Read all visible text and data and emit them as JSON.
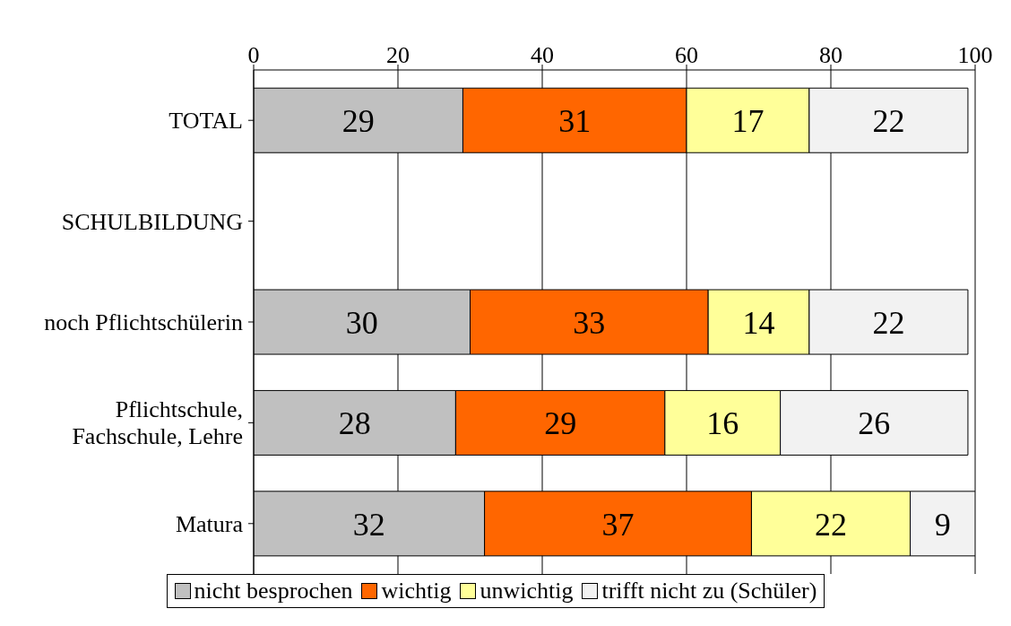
{
  "chart_data": {
    "type": "bar",
    "orientation": "horizontal",
    "stacked": true,
    "categories": [
      "TOTAL",
      "SCHULBILDUNG",
      "noch Pflichtschülerin",
      "Pflichtschule, Fachschule, Lehre",
      "Matura"
    ],
    "series": [
      {
        "name": "nicht besprochen",
        "color": "#c0c0c0",
        "values": [
          29,
          null,
          30,
          28,
          32
        ]
      },
      {
        "name": "wichtig",
        "color": "#ff6600",
        "values": [
          31,
          null,
          33,
          29,
          37
        ]
      },
      {
        "name": "unwichtig",
        "color": "#ffff99",
        "values": [
          17,
          null,
          14,
          16,
          22
        ]
      },
      {
        "name": "trifft nicht zu (Schüler)",
        "color": "#f2f2f2",
        "values": [
          22,
          null,
          22,
          26,
          9
        ]
      }
    ],
    "xlim": [
      0,
      100
    ],
    "xticks": [
      0,
      20,
      40,
      60,
      80,
      100
    ],
    "grid": "x",
    "legend": "bottom",
    "data_labels": true
  }
}
